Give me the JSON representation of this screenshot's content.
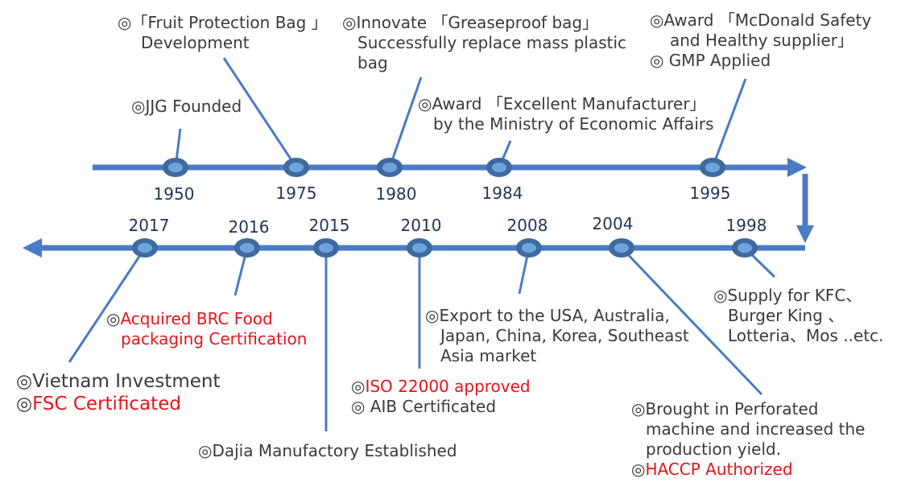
{
  "colors": {
    "line": "#4a7bc4",
    "node_outer": "#3f6a9e",
    "node_inner": "#6ea4dc",
    "year": "#1f3557",
    "text": "#3a3a3a",
    "highlight": "#e8141b"
  },
  "years": {
    "y1950": "1950",
    "y1975": "1975",
    "y1980": "1980",
    "y1984": "1984",
    "y1995": "1995",
    "y1998": "1998",
    "y2004": "2004",
    "y2008": "2008",
    "y2010": "2010",
    "y2015": "2015",
    "y2016": "2016",
    "y2017": "2017"
  },
  "events": {
    "e1950": [
      "◎JJG Founded"
    ],
    "e1975": [
      "◎「Fruit Protection Bag 」",
      "Development"
    ],
    "e1980": [
      "◎Innovate 「Greaseproof bag」",
      "Successfully replace mass plastic",
      "bag"
    ],
    "e1984": [
      "◎Award 「Excellent Manufacturer」",
      "by the Ministry of Economic Affairs"
    ],
    "e1995": [
      "◎Award 「McDonald Safety",
      "and Healthy supplier」",
      "◎ GMP Applied"
    ],
    "e1998": [
      "◎Supply for  KFC、",
      "Burger King 、",
      "Lotteria、Mos ..etc."
    ],
    "e2004": [
      "◎Brought in Perforated",
      "machine and increased the",
      "production yield."
    ],
    "e2004_red": "HACCP Authorized",
    "e2008": [
      "◎Export to the USA, Australia,",
      "Japan, China, Korea, Southeast",
      "Asia market"
    ],
    "e2010_red": "ISO 22000 approved",
    "e2010_b": "◎ AIB Certificated",
    "e2015": "◎Dajia  Manufactory Established",
    "e2016_red": [
      "Acquired BRC Food",
      "packaging Certification"
    ],
    "e2017_a": "◎Vietnam Investment",
    "e2017_red": "FSC Certificated",
    "mark": "◎"
  }
}
